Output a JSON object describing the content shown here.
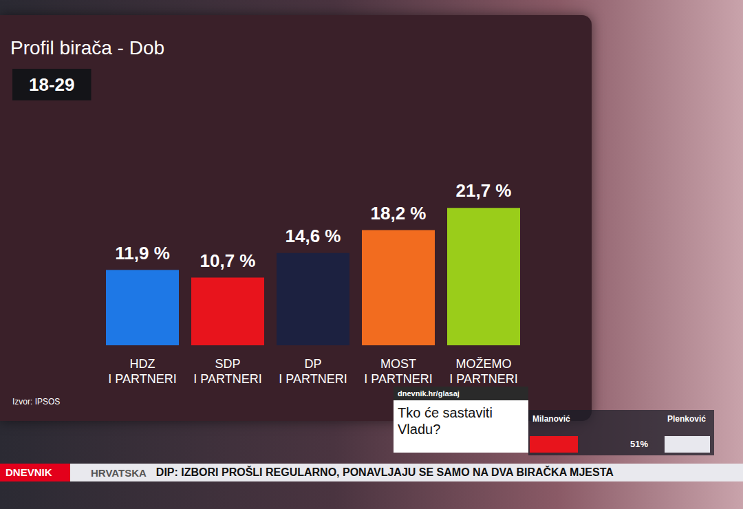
{
  "chart_data": {
    "type": "bar",
    "title": "Profil birača - Dob",
    "subtitle": "18-29",
    "categories": [
      "HDZ I PARTNERI",
      "SDP I PARTNERI",
      "DP I PARTNERI",
      "MOST I PARTNERI",
      "MOŽEMO I PARTNERI"
    ],
    "values": [
      11.9,
      10.7,
      14.6,
      18.2,
      21.7
    ],
    "value_labels": [
      "11,9 %",
      "10,7 %",
      "14,6 %",
      "18,2 %",
      "21,7 %"
    ],
    "colors": [
      "#1e78e6",
      "#e8141c",
      "#1c2140",
      "#f26c1f",
      "#9acd1a"
    ],
    "ylim": [
      0,
      25
    ],
    "grid": false,
    "tick_labels": "x",
    "data_labels": true,
    "annotations": [
      "Izvor: IPSOS"
    ]
  },
  "overlay": {
    "poll": {
      "url": "dnevnik.hr/glasaj",
      "question": "Tko će sastaviti Vladu?",
      "options": [
        "Milanović",
        "Plenković"
      ],
      "label": "51%"
    },
    "ticker": {
      "show": "DNEVNIK",
      "region": "HRVATSKA",
      "text": "DIP: IZBORI PROŠLI REGULARNO, PONAVLJAJU SE SAMO NA DVA BIRAČKA MJESTA"
    }
  }
}
